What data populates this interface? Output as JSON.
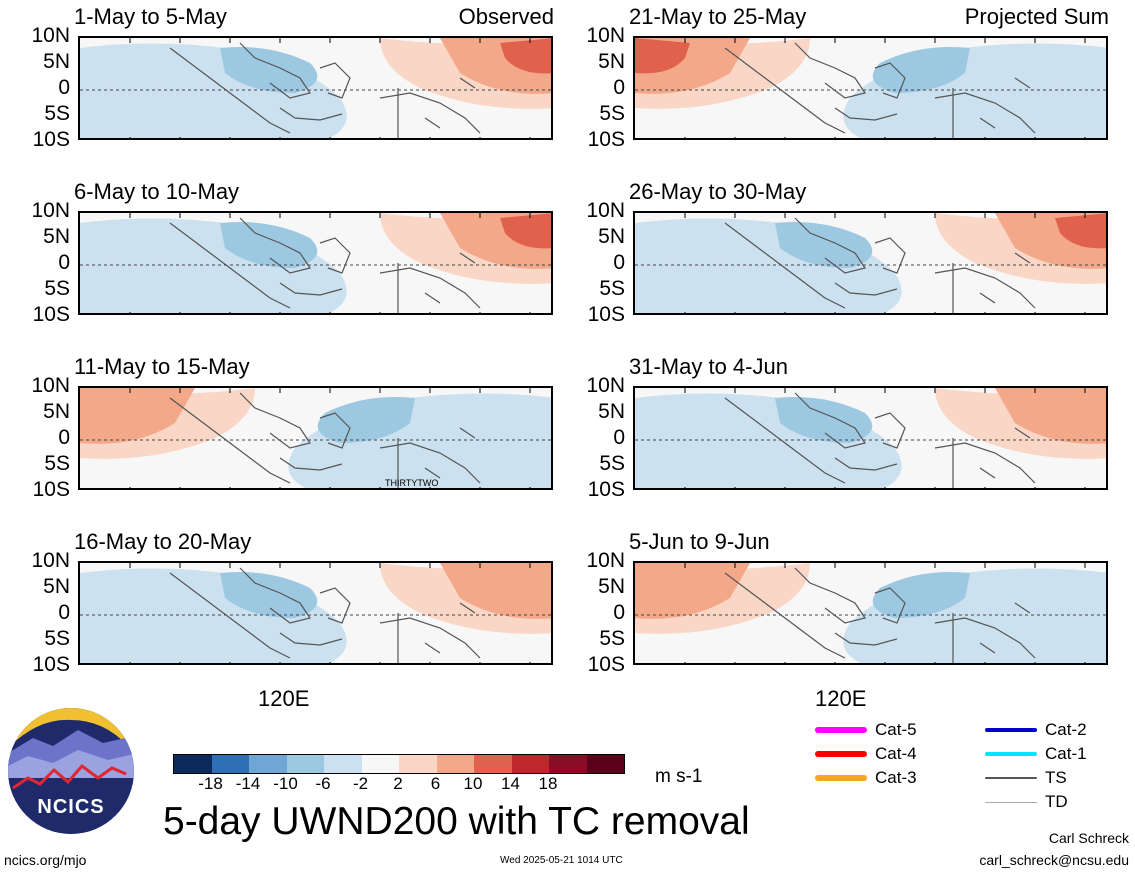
{
  "panels": [
    {
      "title": "1-May to 5-May",
      "label": "Observed",
      "annotation": ""
    },
    {
      "title": "21-May to 25-May",
      "label": "Projected Sum",
      "annotation": ""
    },
    {
      "title": "6-May to 10-May",
      "label": "",
      "annotation": ""
    },
    {
      "title": "26-May to 30-May",
      "label": "",
      "annotation": ""
    },
    {
      "title": "11-May to 15-May",
      "label": "",
      "annotation": "THIRTYTWO"
    },
    {
      "title": "31-May to 4-Jun",
      "label": "",
      "annotation": ""
    },
    {
      "title": "16-May to 20-May",
      "label": "",
      "annotation": ""
    },
    {
      "title": "5-Jun to 9-Jun",
      "label": "",
      "annotation": ""
    }
  ],
  "axis": {
    "lat_ticks": [
      "10N",
      "5N",
      "0",
      "5S",
      "10S"
    ],
    "lon_label": "120E"
  },
  "colorbar": {
    "colors": [
      "#0a2b5c",
      "#2f6fb5",
      "#6ea6d6",
      "#9dc8e2",
      "#cbe1ef",
      "#f7f7f7",
      "#f9d6c5",
      "#f3a88a",
      "#e0624c",
      "#c0272d",
      "#8c0b26",
      "#5a001a"
    ],
    "ticks": [
      "-18",
      "-14",
      "-10",
      "-6",
      "-2",
      "2",
      "6",
      "10",
      "14",
      "18"
    ],
    "units": "m s-1"
  },
  "title": "5-day UWND200 with TC removal",
  "legend": [
    {
      "label": "Cat-5",
      "color": "#ff00ff",
      "weight": "thick"
    },
    {
      "label": "Cat-4",
      "color": "#ff0000",
      "weight": "thick"
    },
    {
      "label": "Cat-3",
      "color": "#f5a623",
      "weight": "thick"
    },
    {
      "label": "Cat-2",
      "color": "#0000cc",
      "weight": "medium"
    },
    {
      "label": "Cat-1",
      "color": "#00e5ff",
      "weight": "medium"
    },
    {
      "label": "TS",
      "color": "#555555",
      "weight": "thin"
    },
    {
      "label": "TD",
      "color": "#aaaaaa",
      "weight": "hair"
    }
  ],
  "footer": {
    "url": "ncics.org/mjo",
    "timestamp": "Wed 2025-05-21 1014 UTC",
    "author": "Carl Schreck",
    "email": "carl_schreck@ncsu.edu",
    "logo_text": "NCICS"
  }
}
